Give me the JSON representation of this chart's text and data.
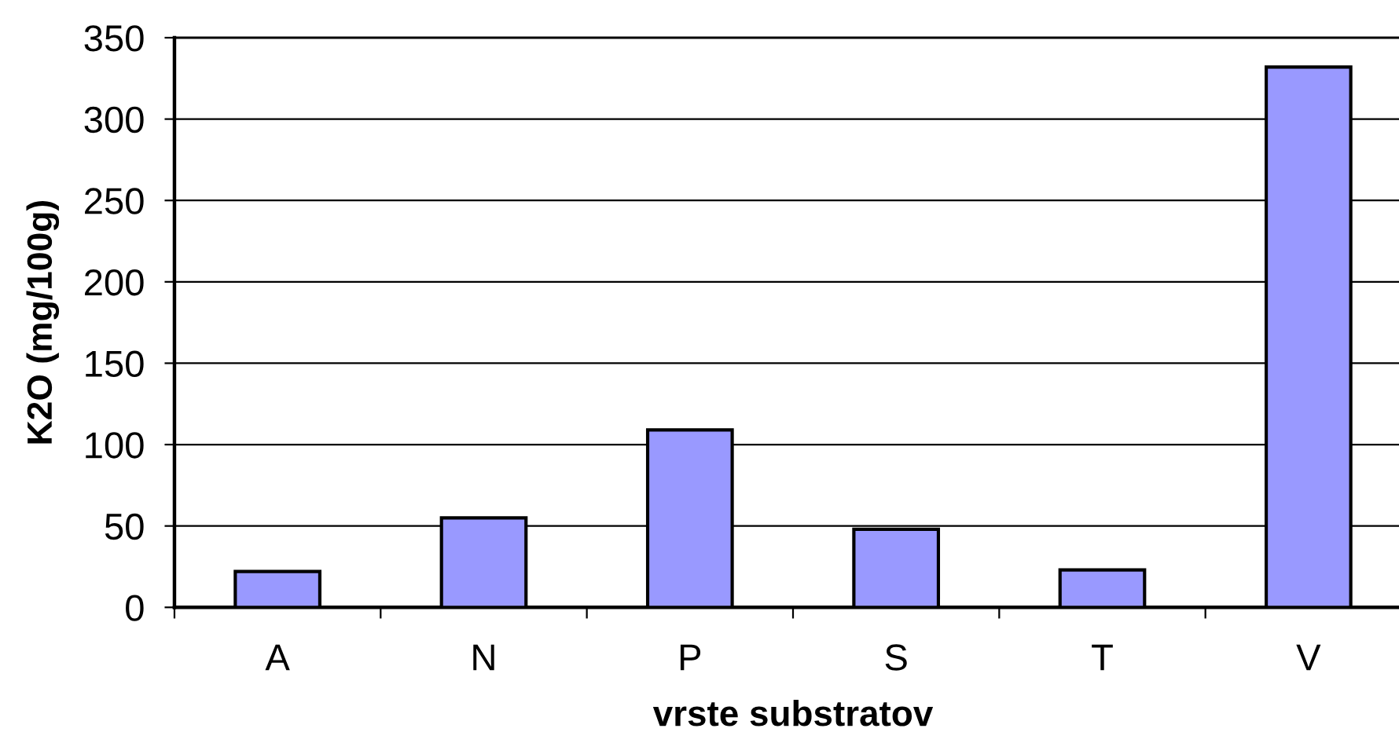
{
  "chart_data": {
    "type": "bar",
    "xlabel": "vrste substratov",
    "ylabel": "K2O (mg/100g)",
    "categories": [
      "A",
      "N",
      "P",
      "S",
      "T",
      "V"
    ],
    "values": [
      22,
      55,
      109,
      48,
      23,
      332
    ],
    "color": "#9999ff",
    "ylim": [
      0,
      350
    ],
    "yticks": [
      0,
      50,
      100,
      150,
      200,
      250,
      300,
      350
    ],
    "grid": "y",
    "legend": false
  }
}
